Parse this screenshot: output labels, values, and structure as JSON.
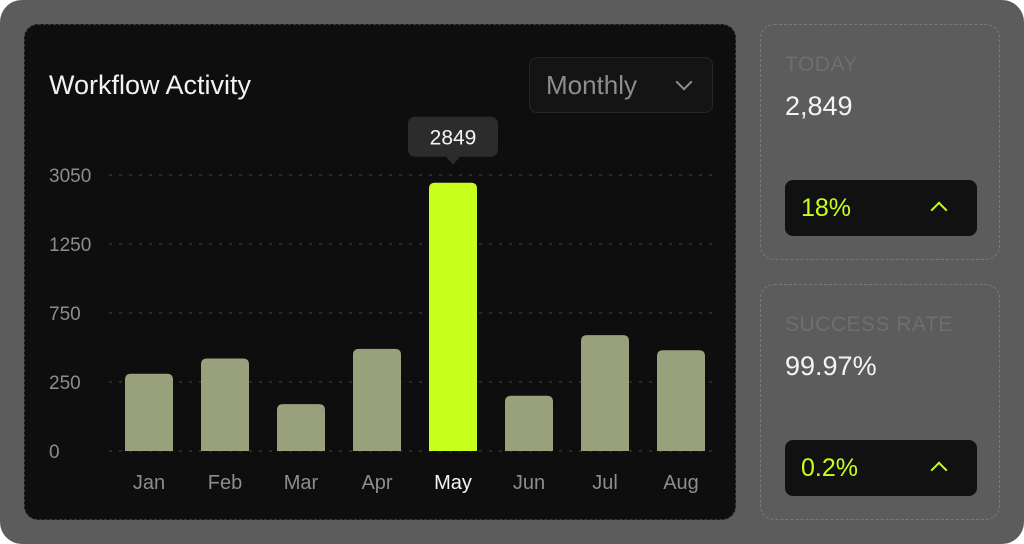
{
  "chart_card": {
    "title": "Workflow Activity",
    "period_selector": {
      "selected": "Monthly",
      "icon": "chevron-down-icon"
    }
  },
  "chart_data": {
    "type": "bar",
    "title": "Workflow Activity",
    "categories": [
      "Jan",
      "Feb",
      "Mar",
      "Apr",
      "May",
      "Jun",
      "Jul",
      "Aug"
    ],
    "values": [
      310,
      420,
      170,
      490,
      2849,
      200,
      590,
      480
    ],
    "y_ticks": [
      0,
      250,
      750,
      1250,
      3050
    ],
    "y_tick_labels": [
      "0",
      "250",
      "750",
      "1250",
      "3050"
    ],
    "ylim": [
      0,
      3050
    ],
    "y_scale": "nonlinear (ticks evenly spaced)",
    "grid": "dotted horizontal",
    "highlighted_category": "May",
    "tooltip": {
      "category": "May",
      "text": "2849"
    },
    "colors": {
      "bar": "#98a07c",
      "highlight": "#c6ff1c",
      "background": "#0e0e0e"
    }
  },
  "stats": {
    "today": {
      "label": "TODAY",
      "value": "2,849",
      "change": "18%",
      "trend_icon": "chevron-up-icon"
    },
    "success_rate": {
      "label": "SUCCESS RATE",
      "value": "99.97%",
      "change": "0.2%",
      "trend_icon": "chevron-up-icon"
    }
  },
  "colors": {
    "frame": "#5c5c5c",
    "accent": "#c6ff1c",
    "text": "#f4f4f4",
    "muted": "#8d8d8d"
  }
}
